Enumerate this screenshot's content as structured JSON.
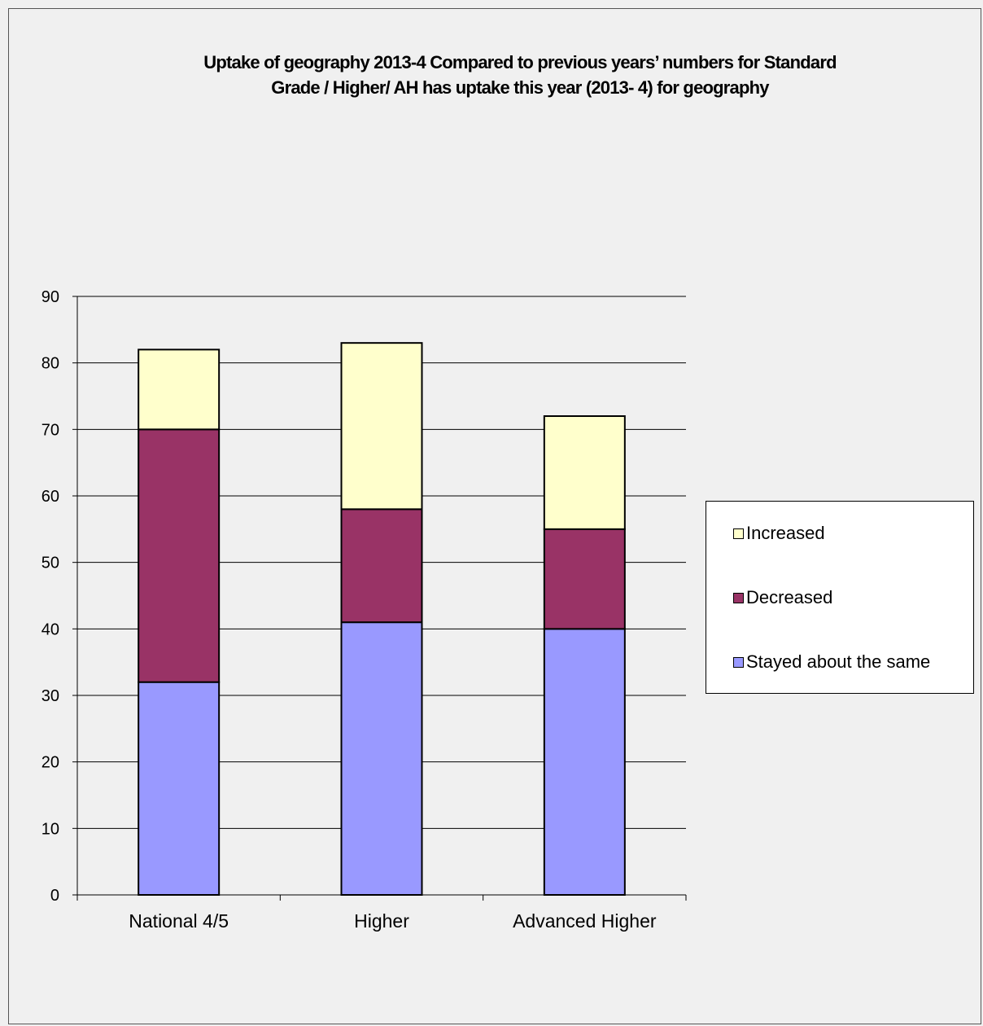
{
  "chart_data": {
    "type": "bar",
    "stacked": true,
    "title_lines": [
      "Uptake of geography 2013-4  Compared to previous years’ numbers for Standard",
      "Grade / Higher/ AH has uptake this year (2013- 4) for geography"
    ],
    "categories": [
      "National 4/5",
      "Higher",
      "Advanced Higher"
    ],
    "series": [
      {
        "name": "Stayed about the same",
        "color": "#9999ff",
        "values": [
          32,
          41,
          40
        ]
      },
      {
        "name": "Decreased",
        "color": "#993366",
        "values": [
          38,
          17,
          15
        ]
      },
      {
        "name": "Increased",
        "color": "#ffffcc",
        "values": [
          12,
          25,
          17
        ]
      }
    ],
    "legend_order": [
      "Increased",
      "Decreased",
      "Stayed about the same"
    ],
    "ylim": [
      0,
      90
    ],
    "yticks": [
      0,
      10,
      20,
      30,
      40,
      50,
      60,
      70,
      80,
      90
    ],
    "grid": true,
    "legend_position": "right",
    "xlabel": "",
    "ylabel": ""
  }
}
